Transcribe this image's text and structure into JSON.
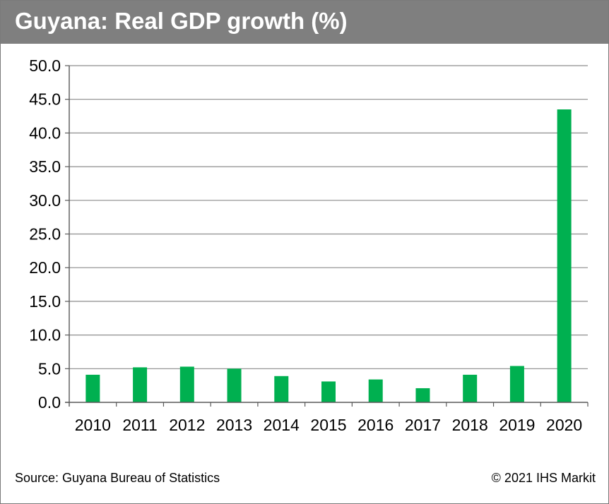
{
  "title": "Guyana: Real GDP growth (%)",
  "footer": {
    "source": "Source: Guyana Bureau of Statistics",
    "copyright": "© 2021 IHS Markit"
  },
  "colors": {
    "header_bg": "#7f7f7f",
    "bar": "#00b050",
    "grid": "#8c8c8c",
    "axis": "#595959"
  },
  "chart_data": {
    "type": "bar",
    "title": "Guyana: Real GDP growth (%)",
    "xlabel": "",
    "ylabel": "",
    "categories": [
      "2010",
      "2011",
      "2012",
      "2013",
      "2014",
      "2015",
      "2016",
      "2017",
      "2018",
      "2019",
      "2020"
    ],
    "series": [
      {
        "name": "Real GDP growth (%)",
        "values": [
          4.1,
          5.2,
          5.3,
          5.0,
          3.9,
          3.1,
          3.4,
          2.1,
          4.1,
          5.4,
          43.5
        ]
      }
    ],
    "ylim": [
      0,
      50
    ],
    "yticks": [
      "0.0",
      "5.0",
      "10.0",
      "15.0",
      "20.0",
      "25.0",
      "30.0",
      "35.0",
      "40.0",
      "45.0",
      "50.0"
    ],
    "grid": true,
    "legend": "none"
  }
}
